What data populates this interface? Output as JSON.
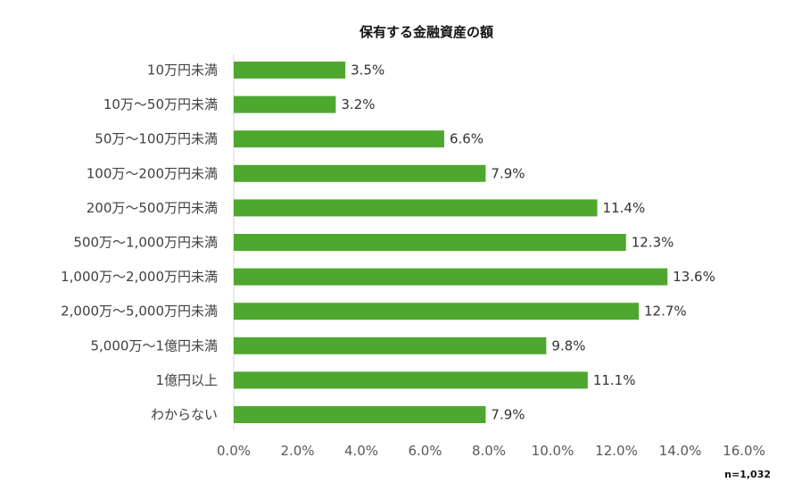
{
  "chart_data": {
    "type": "bar",
    "orientation": "horizontal",
    "title": "保有する金融資産の額",
    "categories": [
      "10万円未満",
      "10万～50万円未満",
      "50万～100万円未満",
      "100万～200万円未満",
      "200万～500万円未満",
      "500万～1,000万円未満",
      "1,000万～2,000万円未満",
      "2,000万～5,000万円未満",
      "5,000万～1億円未満",
      "1億円以上",
      "わからない"
    ],
    "values": [
      3.5,
      3.2,
      6.6,
      7.9,
      11.4,
      12.3,
      13.6,
      12.7,
      9.8,
      11.1,
      7.9
    ],
    "value_labels": [
      "3.5%",
      "3.2%",
      "6.6%",
      "7.9%",
      "11.4%",
      "12.3%",
      "13.6%",
      "12.7%",
      "9.8%",
      "11.1%",
      "7.9%"
    ],
    "xlim": [
      0,
      16
    ],
    "x_ticks": [
      "0.0%",
      "2.0%",
      "4.0%",
      "6.0%",
      "8.0%",
      "10.0%",
      "12.0%",
      "14.0%",
      "16.0%"
    ],
    "bar_color": "#4ea72e",
    "grid": false,
    "xlabel": "",
    "ylabel": ""
  },
  "footnote": "n=1,032"
}
